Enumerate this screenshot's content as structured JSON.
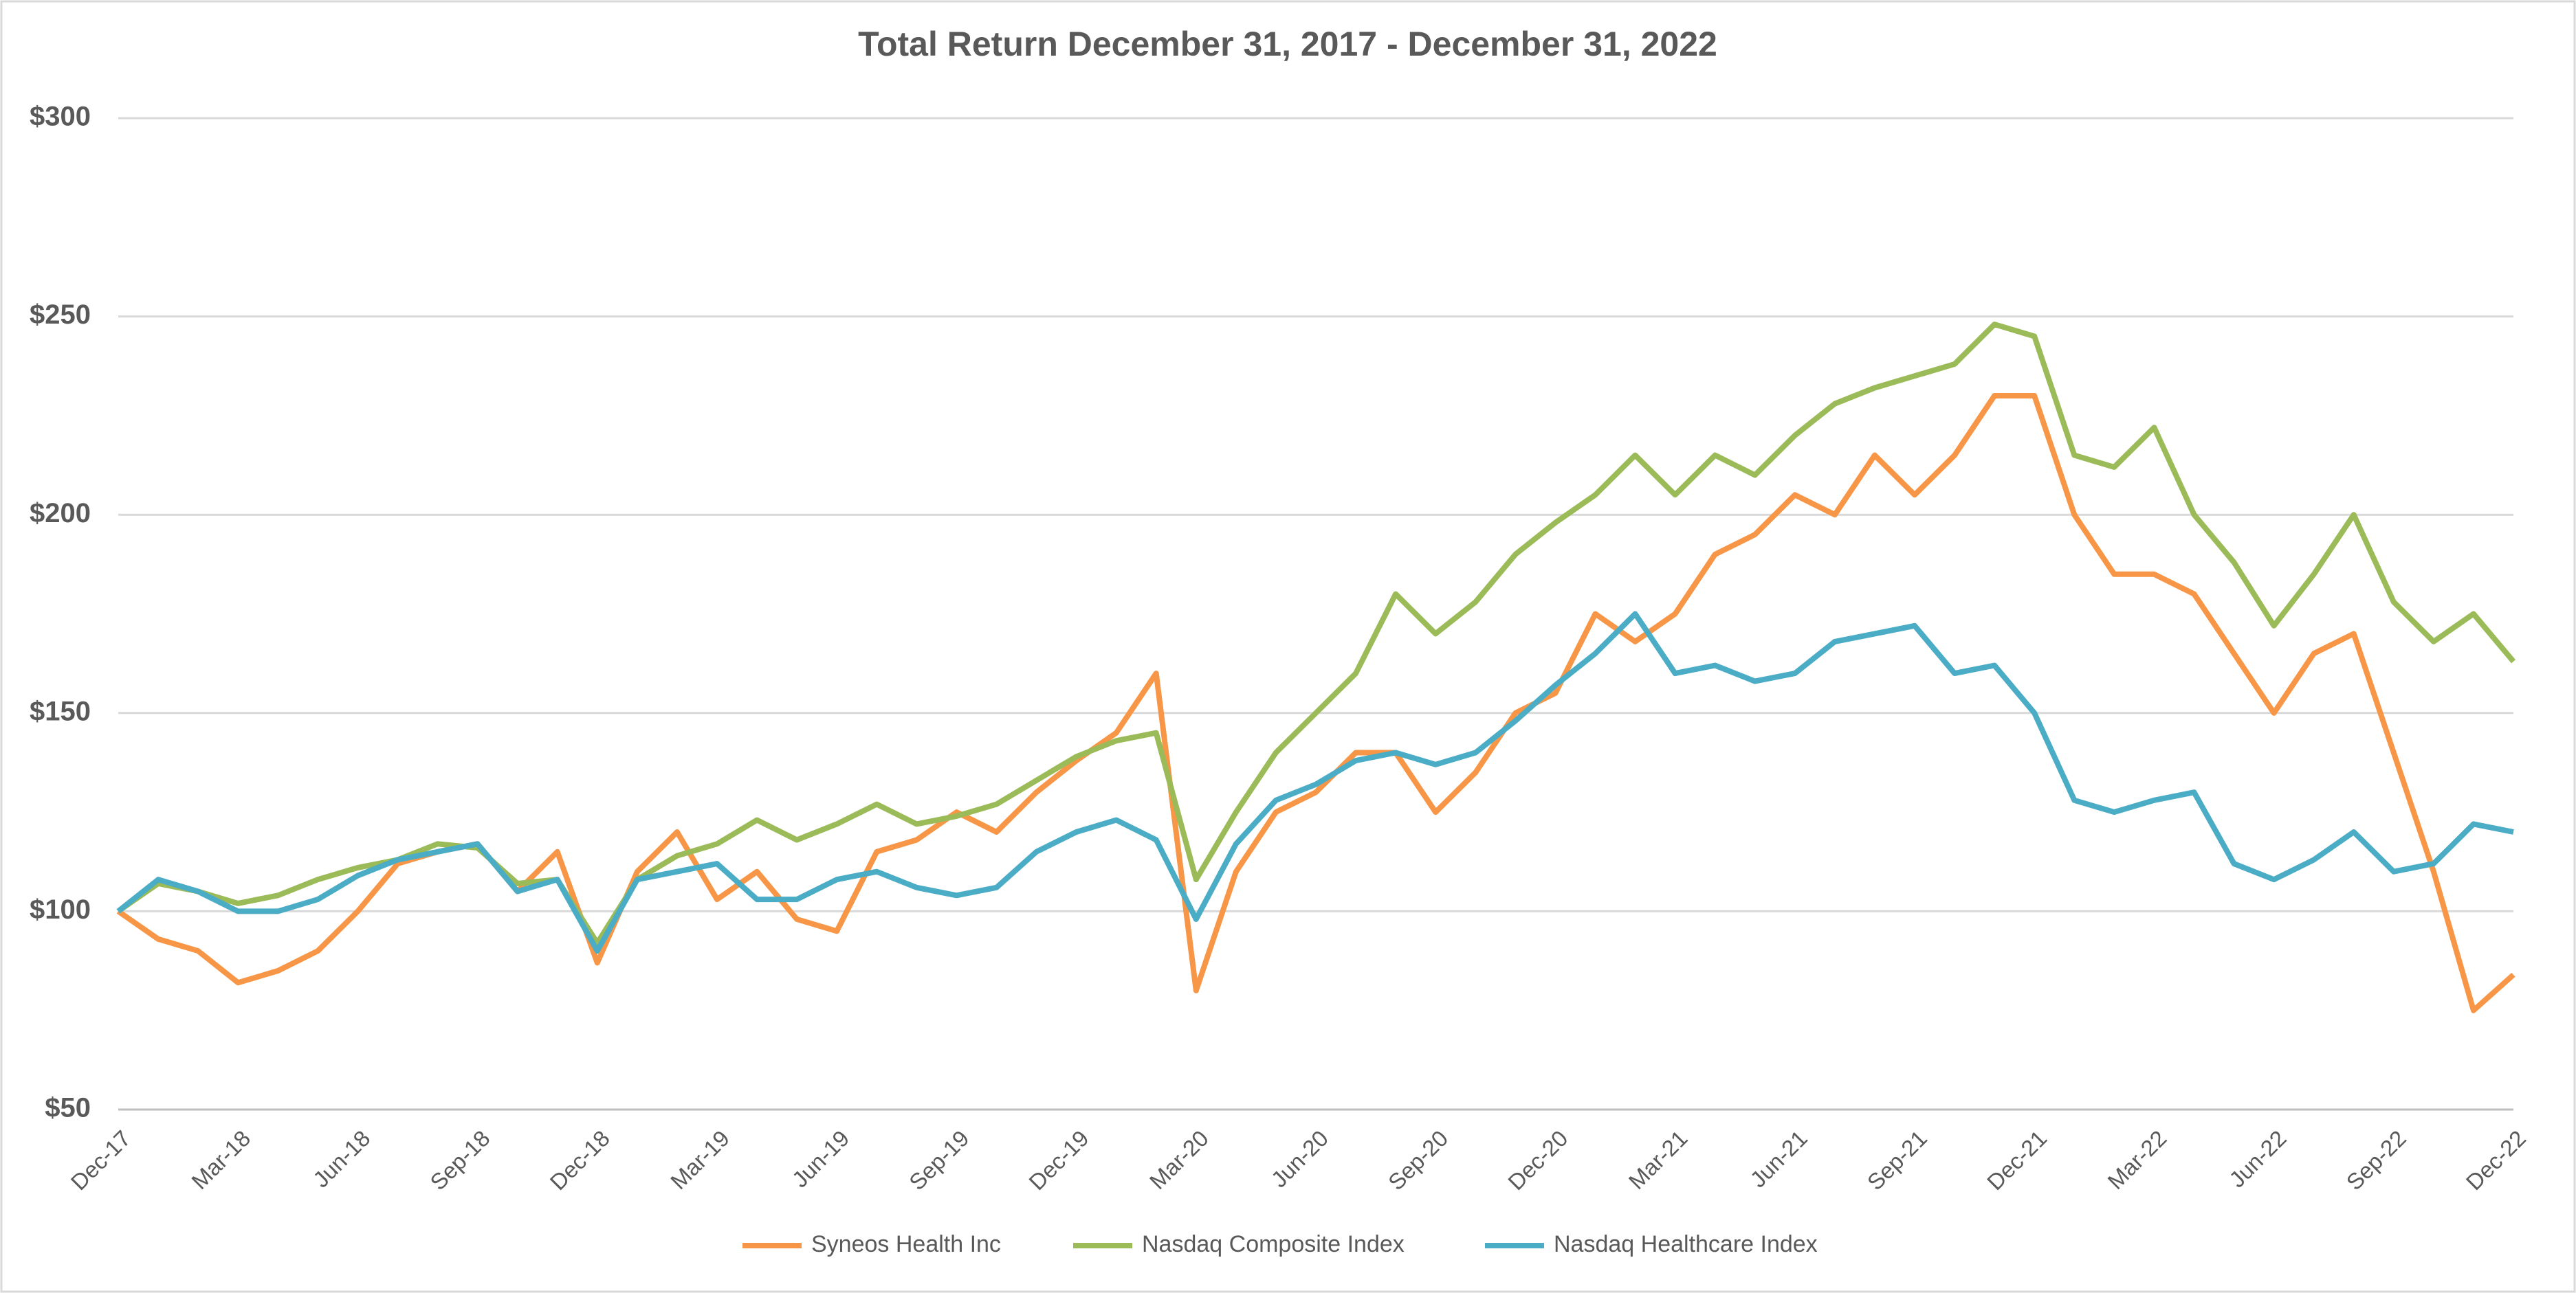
{
  "chart_data": {
    "type": "line",
    "title": "Total Return December 31, 2017 - December 31, 2022",
    "categories": [
      "Dec-17",
      null,
      null,
      "Mar-18",
      null,
      null,
      "Jun-18",
      null,
      null,
      "Sep-18",
      null,
      null,
      "Dec-18",
      null,
      null,
      "Mar-19",
      null,
      null,
      "Jun-19",
      null,
      null,
      "Sep-19",
      null,
      null,
      "Dec-19",
      null,
      null,
      "Mar-20",
      null,
      null,
      "Jun-20",
      null,
      null,
      "Sep-20",
      null,
      null,
      "Dec-20",
      null,
      null,
      "Mar-21",
      null,
      null,
      "Jun-21",
      null,
      null,
      "Sep-21",
      null,
      null,
      "Dec-21",
      null,
      null,
      "Mar-22",
      null,
      null,
      "Jun-22",
      null,
      null,
      "Sep-22",
      null,
      null,
      "Dec-22"
    ],
    "series": [
      {
        "name": "Syneos Health Inc",
        "color": "#f79646",
        "values": [
          100,
          93,
          90,
          82,
          85,
          90,
          100,
          112,
          115,
          117,
          105,
          115,
          87,
          110,
          120,
          103,
          110,
          98,
          95,
          115,
          118,
          125,
          120,
          130,
          138,
          145,
          160,
          80,
          110,
          125,
          130,
          140,
          140,
          125,
          135,
          150,
          155,
          175,
          168,
          175,
          190,
          195,
          205,
          200,
          215,
          205,
          215,
          230,
          230,
          200,
          185,
          185,
          180,
          165,
          150,
          165,
          170,
          140,
          110,
          75,
          84
        ]
      },
      {
        "name": "Nasdaq Composite Index",
        "color": "#9bbb59",
        "values": [
          100,
          107,
          105,
          102,
          104,
          108,
          111,
          113,
          117,
          116,
          107,
          108,
          92,
          108,
          114,
          117,
          123,
          118,
          122,
          127,
          122,
          124,
          127,
          133,
          139,
          143,
          145,
          108,
          125,
          140,
          150,
          160,
          180,
          170,
          178,
          190,
          198,
          205,
          215,
          205,
          215,
          210,
          220,
          228,
          232,
          235,
          238,
          248,
          245,
          215,
          212,
          222,
          200,
          188,
          172,
          185,
          200,
          178,
          168,
          175,
          163
        ]
      },
      {
        "name": "Nasdaq Healthcare Index",
        "color": "#4bacc6",
        "values": [
          100,
          108,
          105,
          100,
          100,
          103,
          109,
          113,
          115,
          117,
          105,
          108,
          90,
          108,
          110,
          112,
          103,
          103,
          108,
          110,
          106,
          104,
          106,
          115,
          120,
          123,
          118,
          98,
          117,
          128,
          132,
          138,
          140,
          137,
          140,
          148,
          157,
          165,
          175,
          160,
          162,
          158,
          160,
          168,
          170,
          172,
          160,
          162,
          150,
          128,
          125,
          128,
          130,
          112,
          108,
          113,
          120,
          110,
          112,
          122,
          120
        ]
      }
    ],
    "ylim": [
      50,
      300
    ],
    "yticks": [
      {
        "value": 50,
        "label": "$50"
      },
      {
        "value": 100,
        "label": "$100"
      },
      {
        "value": 150,
        "label": "$150"
      },
      {
        "value": 200,
        "label": "$200"
      },
      {
        "value": 250,
        "label": "$250"
      },
      {
        "value": 300,
        "label": "$300"
      }
    ],
    "grid": true,
    "legend": "bottom"
  }
}
